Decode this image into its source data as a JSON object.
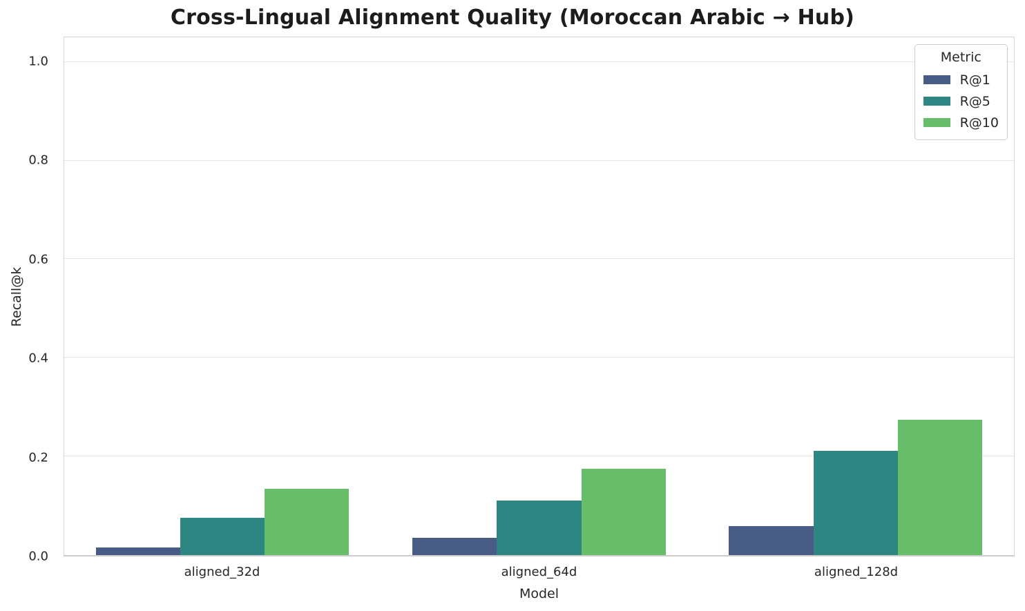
{
  "chart_data": {
    "type": "bar",
    "title": "Cross-Lingual Alignment Quality (Moroccan Arabic → Hub)",
    "xlabel": "Model",
    "ylabel": "Recall@k",
    "categories": [
      "aligned_32d",
      "aligned_64d",
      "aligned_128d"
    ],
    "series": [
      {
        "name": "R@1",
        "color": "#485b85",
        "values": [
          0.015,
          0.035,
          0.059
        ]
      },
      {
        "name": "R@5",
        "color": "#2e8682",
        "values": [
          0.075,
          0.11,
          0.212
        ]
      },
      {
        "name": "R@10",
        "color": "#68bd6b",
        "values": [
          0.134,
          0.175,
          0.274
        ]
      }
    ],
    "ylim": [
      0,
      1.05
    ],
    "yticks": [
      0.0,
      0.2,
      0.4,
      0.6,
      0.8,
      1.0
    ],
    "grid": "horizontal",
    "legend": {
      "title": "Metric",
      "position": "upper-right"
    }
  }
}
